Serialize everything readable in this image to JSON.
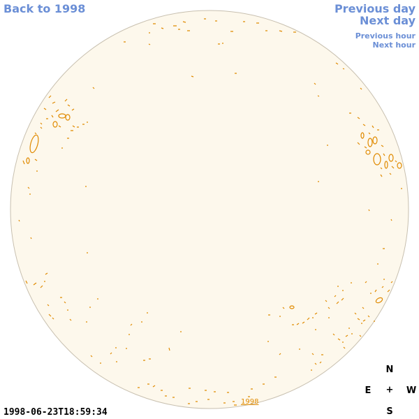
{
  "nav": {
    "back_label": "Back to 1998",
    "prev_day_label": "Previous day",
    "next_day_label": "Next day",
    "prev_hour_label": "Previous hour",
    "next_hour_label": "Next hour"
  },
  "timestamp": "1998-06-23T18:59:34",
  "year_link": "1998",
  "compass": {
    "north": "N",
    "south": "S",
    "east": "E",
    "west": "W",
    "center": "+"
  },
  "colors": {
    "link": "#6b8fd6",
    "disc_fill": "#fdf8ec",
    "disc_border": "#c8c0b0",
    "contour": "#e08a00",
    "year_link": "#e08a00"
  }
}
